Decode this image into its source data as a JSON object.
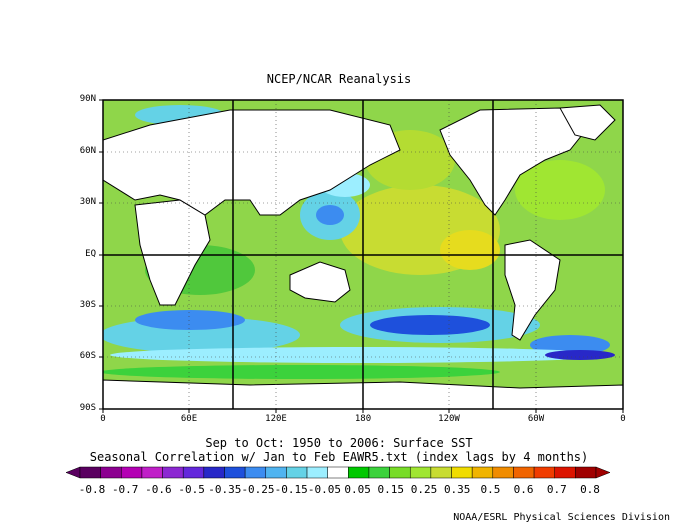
{
  "title": "NCEP/NCAR Reanalysis",
  "lat_labels": [
    "90N",
    "60N",
    "30N",
    "EQ",
    "30S",
    "60S",
    "90S"
  ],
  "lon_labels": [
    "0",
    "60E",
    "120E",
    "180",
    "120W",
    "60W",
    "0"
  ],
  "subtitle_line1": "Sep to Oct: 1950 to 2006: Surface SST",
  "subtitle_line2": "Seasonal Correlation w/ Jan to Feb EAWR5.txt (index lags by 4 months)",
  "colorbar": {
    "labels": [
      "-0.8",
      "-0.7",
      "-0.6",
      "-0.5",
      "-0.35",
      "-0.25",
      "-0.15",
      "-0.05",
      "0.05",
      "0.15",
      "0.25",
      "0.35",
      "0.5",
      "0.6",
      "0.7",
      "0.8"
    ],
    "colors": [
      "#5a0060",
      "#8c0090",
      "#b400b4",
      "#c020c8",
      "#8c28d2",
      "#6428dc",
      "#2828c8",
      "#1e50dc",
      "#3c8cf0",
      "#50b4f0",
      "#64d2e6",
      "#9ceeff",
      "#ffffff",
      "#00c800",
      "#3cd23c",
      "#78dc28",
      "#a0e632",
      "#c8dc32",
      "#f0dc00",
      "#f0b400",
      "#f08c00",
      "#f06400",
      "#f03c00",
      "#dc1400",
      "#a00000"
    ],
    "colors_note": "discrete color bins"
  },
  "credit": "NOAA/ESRL Physical Sciences Division"
}
